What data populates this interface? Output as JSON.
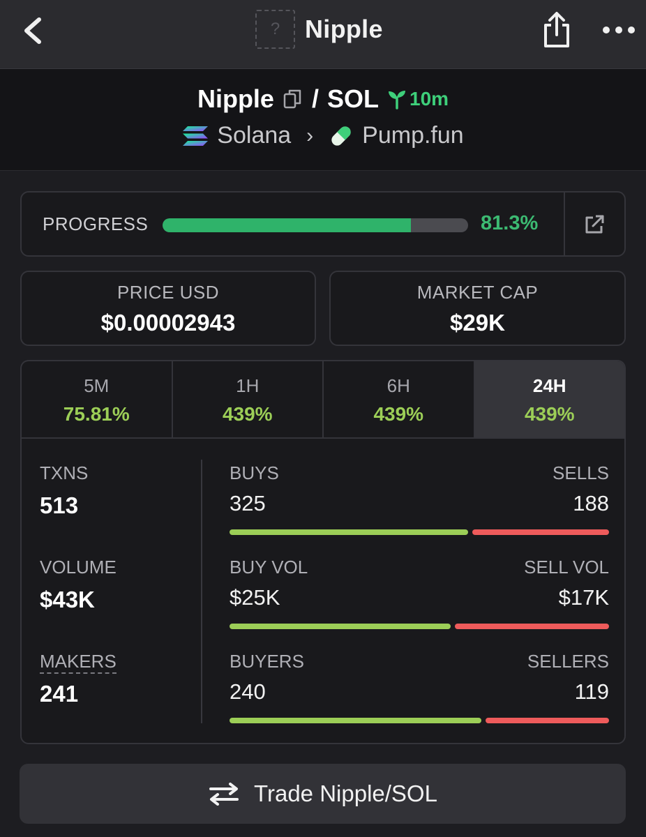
{
  "header": {
    "title": "Nipple",
    "placeholder_glyph": "?"
  },
  "pair": {
    "base": "Nipple",
    "separator": "/",
    "quote": "SOL",
    "age": "10m",
    "chain": "Solana",
    "dex": "Pump.fun"
  },
  "progress": {
    "label": "PROGRESS",
    "value_text": "81.3%",
    "value": 0.813
  },
  "price": {
    "label": "PRICE USD",
    "value": "$0.00002943"
  },
  "market_cap": {
    "label": "MARKET CAP",
    "value": "$29K"
  },
  "tabs": [
    {
      "name": "5M",
      "change": "75.81%"
    },
    {
      "name": "1H",
      "change": "439%"
    },
    {
      "name": "6H",
      "change": "439%"
    },
    {
      "name": "24H",
      "change": "439%",
      "active": true
    }
  ],
  "stats": {
    "txns": {
      "label": "TXNS",
      "value": "513"
    },
    "volume": {
      "label": "VOLUME",
      "value": "$43K"
    },
    "makers": {
      "label": "MAKERS",
      "value": "241"
    },
    "buys": {
      "label": "BUYS",
      "value": "325",
      "ratio": 0.634
    },
    "sells": {
      "label": "SELLS",
      "value": "188"
    },
    "buy_vol": {
      "label": "BUY VOL",
      "value": "$25K",
      "ratio": 0.588
    },
    "sell_vol": {
      "label": "SELL VOL",
      "value": "$17K"
    },
    "buyers": {
      "label": "BUYERS",
      "value": "240",
      "ratio": 0.669
    },
    "sellers": {
      "label": "SELLERS",
      "value": "119"
    }
  },
  "trade_button": {
    "label": "Trade Nipple/SOL"
  },
  "icons": [
    "back-icon",
    "share-icon",
    "more-icon",
    "copy-icon",
    "sprout-icon",
    "solana-icon",
    "chevron-right-icon",
    "pill-icon",
    "external-link-icon",
    "swap-icon"
  ],
  "colors": {
    "progress_green": "#2fb36a",
    "positive": "#9cce57",
    "negative": "#ee5b5b",
    "age_green": "#3ecf7a"
  }
}
